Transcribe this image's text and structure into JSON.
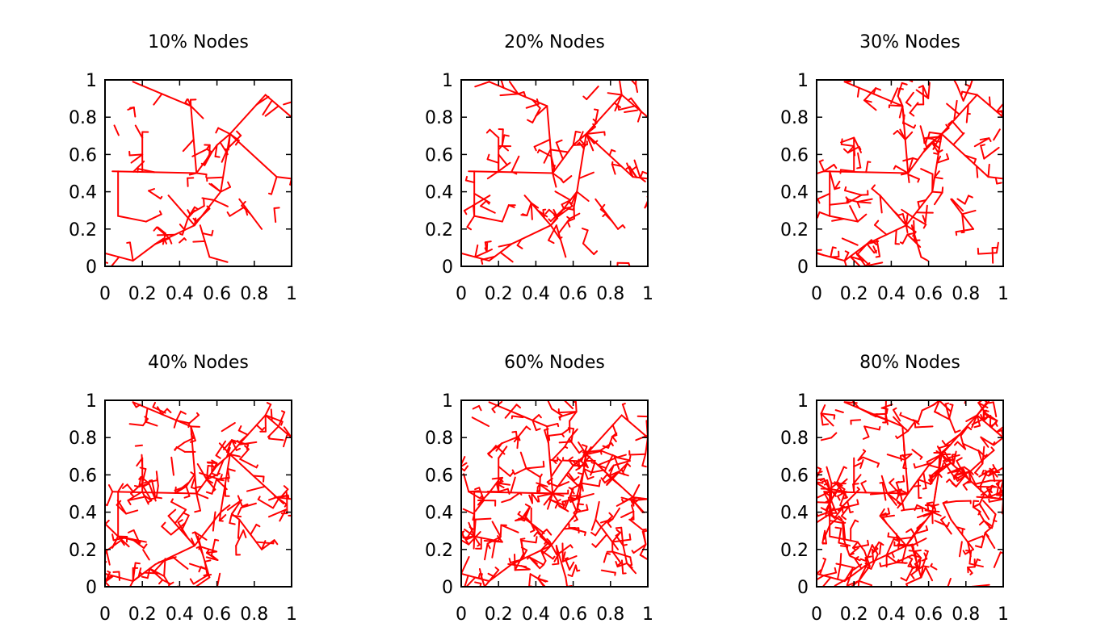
{
  "colors": {
    "edge": "#ff0000",
    "axis": "#000000",
    "background": "#ffffff"
  },
  "chart_data": [
    {
      "type": "line",
      "title": "10% Nodes",
      "node_fraction": 0.1,
      "xlim": [
        0,
        1
      ],
      "ylim": [
        0,
        1
      ],
      "xticks": [
        "0",
        "0.2",
        "0.4",
        "0.6",
        "0.8",
        "1"
      ],
      "yticks": [
        "0",
        "0.2",
        "0.4",
        "0.6",
        "0.8",
        "1"
      ],
      "trunk": [
        [
          [
            0.0,
            0.07
          ],
          [
            0.15,
            0.03
          ],
          [
            0.27,
            0.12
          ],
          [
            0.48,
            0.22
          ],
          [
            0.62,
            0.4
          ],
          [
            0.67,
            0.71
          ],
          [
            0.86,
            0.92
          ],
          [
            1.0,
            0.8
          ]
        ],
        [
          [
            0.04,
            0.51
          ],
          [
            0.49,
            0.5
          ],
          [
            0.6,
            0.65
          ],
          [
            0.67,
            0.71
          ],
          [
            0.92,
            0.48
          ],
          [
            1.0,
            0.47
          ]
        ],
        [
          [
            0.46,
            0.86
          ],
          [
            0.49,
            0.5
          ]
        ],
        [
          [
            0.07,
            0.51
          ],
          [
            0.07,
            0.27
          ],
          [
            0.22,
            0.24
          ]
        ],
        [
          [
            0.2,
            0.51
          ],
          [
            0.2,
            0.69
          ]
        ],
        [
          [
            0.72,
            0.36
          ],
          [
            0.84,
            0.2
          ]
        ],
        [
          [
            0.34,
            0.38
          ],
          [
            0.48,
            0.22
          ]
        ],
        [
          [
            0.15,
            0.99
          ],
          [
            0.46,
            0.86
          ]
        ],
        [
          [
            0.51,
            0.22
          ],
          [
            0.56,
            0.05
          ]
        ]
      ]
    },
    {
      "type": "line",
      "title": "20% Nodes",
      "node_fraction": 0.2,
      "xlim": [
        0,
        1
      ],
      "ylim": [
        0,
        1
      ],
      "xticks": [
        "0",
        "0.2",
        "0.4",
        "0.6",
        "0.8",
        "1"
      ],
      "yticks": [
        "0",
        "0.2",
        "0.4",
        "0.6",
        "0.8",
        "1"
      ],
      "trunk": [
        [
          [
            0.0,
            0.07
          ],
          [
            0.15,
            0.03
          ],
          [
            0.27,
            0.12
          ],
          [
            0.48,
            0.22
          ],
          [
            0.62,
            0.4
          ],
          [
            0.67,
            0.71
          ],
          [
            0.86,
            0.92
          ],
          [
            1.0,
            0.8
          ]
        ],
        [
          [
            0.04,
            0.51
          ],
          [
            0.49,
            0.5
          ],
          [
            0.6,
            0.65
          ],
          [
            0.67,
            0.71
          ],
          [
            0.92,
            0.48
          ],
          [
            1.0,
            0.47
          ]
        ],
        [
          [
            0.46,
            0.86
          ],
          [
            0.49,
            0.5
          ]
        ],
        [
          [
            0.07,
            0.51
          ],
          [
            0.07,
            0.27
          ],
          [
            0.22,
            0.24
          ]
        ],
        [
          [
            0.2,
            0.51
          ],
          [
            0.2,
            0.69
          ]
        ],
        [
          [
            0.72,
            0.36
          ],
          [
            0.84,
            0.2
          ]
        ],
        [
          [
            0.34,
            0.38
          ],
          [
            0.48,
            0.22
          ]
        ],
        [
          [
            0.15,
            0.99
          ],
          [
            0.46,
            0.86
          ]
        ],
        [
          [
            0.51,
            0.22
          ],
          [
            0.56,
            0.05
          ]
        ]
      ]
    },
    {
      "type": "line",
      "title": "30% Nodes",
      "node_fraction": 0.3,
      "xlim": [
        0,
        1
      ],
      "ylim": [
        0,
        1
      ],
      "xticks": [
        "0",
        "0.2",
        "0.4",
        "0.6",
        "0.8",
        "1"
      ],
      "yticks": [
        "0",
        "0.2",
        "0.4",
        "0.6",
        "0.8",
        "1"
      ],
      "trunk": [
        [
          [
            0.0,
            0.07
          ],
          [
            0.15,
            0.03
          ],
          [
            0.27,
            0.12
          ],
          [
            0.48,
            0.22
          ],
          [
            0.62,
            0.4
          ],
          [
            0.67,
            0.71
          ],
          [
            0.86,
            0.92
          ],
          [
            1.0,
            0.8
          ]
        ],
        [
          [
            0.04,
            0.51
          ],
          [
            0.49,
            0.5
          ],
          [
            0.6,
            0.65
          ],
          [
            0.67,
            0.71
          ],
          [
            0.92,
            0.48
          ],
          [
            1.0,
            0.47
          ]
        ],
        [
          [
            0.46,
            0.86
          ],
          [
            0.49,
            0.5
          ]
        ],
        [
          [
            0.07,
            0.51
          ],
          [
            0.07,
            0.27
          ],
          [
            0.22,
            0.24
          ]
        ],
        [
          [
            0.2,
            0.51
          ],
          [
            0.2,
            0.69
          ]
        ],
        [
          [
            0.72,
            0.36
          ],
          [
            0.84,
            0.2
          ]
        ],
        [
          [
            0.34,
            0.38
          ],
          [
            0.48,
            0.22
          ]
        ],
        [
          [
            0.15,
            0.99
          ],
          [
            0.46,
            0.86
          ]
        ],
        [
          [
            0.51,
            0.22
          ],
          [
            0.56,
            0.05
          ]
        ]
      ]
    },
    {
      "type": "line",
      "title": "40% Nodes",
      "node_fraction": 0.4,
      "xlim": [
        0,
        1
      ],
      "ylim": [
        0,
        1
      ],
      "xticks": [
        "0",
        "0.2",
        "0.4",
        "0.6",
        "0.8",
        "1"
      ],
      "yticks": [
        "0",
        "0.2",
        "0.4",
        "0.6",
        "0.8",
        "1"
      ],
      "trunk": [
        [
          [
            0.0,
            0.07
          ],
          [
            0.15,
            0.03
          ],
          [
            0.27,
            0.12
          ],
          [
            0.48,
            0.22
          ],
          [
            0.62,
            0.4
          ],
          [
            0.67,
            0.71
          ],
          [
            0.86,
            0.92
          ],
          [
            1.0,
            0.8
          ]
        ],
        [
          [
            0.04,
            0.51
          ],
          [
            0.49,
            0.5
          ],
          [
            0.6,
            0.65
          ],
          [
            0.67,
            0.71
          ],
          [
            0.92,
            0.48
          ],
          [
            1.0,
            0.47
          ]
        ],
        [
          [
            0.46,
            0.86
          ],
          [
            0.49,
            0.5
          ]
        ],
        [
          [
            0.07,
            0.51
          ],
          [
            0.07,
            0.27
          ],
          [
            0.22,
            0.24
          ]
        ],
        [
          [
            0.2,
            0.51
          ],
          [
            0.2,
            0.69
          ]
        ],
        [
          [
            0.72,
            0.36
          ],
          [
            0.84,
            0.2
          ]
        ],
        [
          [
            0.34,
            0.38
          ],
          [
            0.48,
            0.22
          ]
        ],
        [
          [
            0.15,
            0.99
          ],
          [
            0.46,
            0.86
          ]
        ],
        [
          [
            0.51,
            0.22
          ],
          [
            0.56,
            0.05
          ]
        ]
      ]
    },
    {
      "type": "line",
      "title": "60% Nodes",
      "node_fraction": 0.6,
      "xlim": [
        0,
        1
      ],
      "ylim": [
        0,
        1
      ],
      "xticks": [
        "0",
        "0.2",
        "0.4",
        "0.6",
        "0.8",
        "1"
      ],
      "yticks": [
        "0",
        "0.2",
        "0.4",
        "0.6",
        "0.8",
        "1"
      ],
      "trunk": [
        [
          [
            0.0,
            0.07
          ],
          [
            0.15,
            0.03
          ],
          [
            0.27,
            0.12
          ],
          [
            0.48,
            0.22
          ],
          [
            0.62,
            0.4
          ],
          [
            0.67,
            0.71
          ],
          [
            0.86,
            0.92
          ],
          [
            1.0,
            0.8
          ]
        ],
        [
          [
            0.04,
            0.51
          ],
          [
            0.49,
            0.5
          ],
          [
            0.6,
            0.65
          ],
          [
            0.67,
            0.71
          ],
          [
            0.92,
            0.48
          ],
          [
            1.0,
            0.47
          ]
        ],
        [
          [
            0.46,
            0.86
          ],
          [
            0.49,
            0.5
          ]
        ],
        [
          [
            0.07,
            0.51
          ],
          [
            0.07,
            0.27
          ],
          [
            0.22,
            0.24
          ]
        ],
        [
          [
            0.2,
            0.51
          ],
          [
            0.2,
            0.69
          ]
        ],
        [
          [
            0.72,
            0.36
          ],
          [
            0.84,
            0.2
          ]
        ],
        [
          [
            0.34,
            0.38
          ],
          [
            0.48,
            0.22
          ]
        ],
        [
          [
            0.15,
            0.99
          ],
          [
            0.46,
            0.86
          ]
        ],
        [
          [
            0.51,
            0.22
          ],
          [
            0.56,
            0.05
          ]
        ]
      ]
    },
    {
      "type": "line",
      "title": "80% Nodes",
      "node_fraction": 0.8,
      "xlim": [
        0,
        1
      ],
      "ylim": [
        0,
        1
      ],
      "xticks": [
        "0",
        "0.2",
        "0.4",
        "0.6",
        "0.8",
        "1"
      ],
      "yticks": [
        "0",
        "0.2",
        "0.4",
        "0.6",
        "0.8",
        "1"
      ],
      "trunk": [
        [
          [
            0.0,
            0.07
          ],
          [
            0.15,
            0.03
          ],
          [
            0.27,
            0.12
          ],
          [
            0.48,
            0.22
          ],
          [
            0.62,
            0.4
          ],
          [
            0.67,
            0.71
          ],
          [
            0.86,
            0.92
          ],
          [
            1.0,
            0.8
          ]
        ],
        [
          [
            0.04,
            0.51
          ],
          [
            0.49,
            0.5
          ],
          [
            0.6,
            0.65
          ],
          [
            0.67,
            0.71
          ],
          [
            0.92,
            0.48
          ],
          [
            1.0,
            0.47
          ]
        ],
        [
          [
            0.46,
            0.86
          ],
          [
            0.49,
            0.5
          ]
        ],
        [
          [
            0.07,
            0.51
          ],
          [
            0.07,
            0.27
          ],
          [
            0.22,
            0.24
          ]
        ],
        [
          [
            0.2,
            0.51
          ],
          [
            0.2,
            0.69
          ]
        ],
        [
          [
            0.72,
            0.36
          ],
          [
            0.84,
            0.2
          ]
        ],
        [
          [
            0.34,
            0.38
          ],
          [
            0.48,
            0.22
          ]
        ],
        [
          [
            0.15,
            0.99
          ],
          [
            0.46,
            0.86
          ]
        ],
        [
          [
            0.51,
            0.22
          ],
          [
            0.56,
            0.05
          ]
        ]
      ]
    }
  ]
}
